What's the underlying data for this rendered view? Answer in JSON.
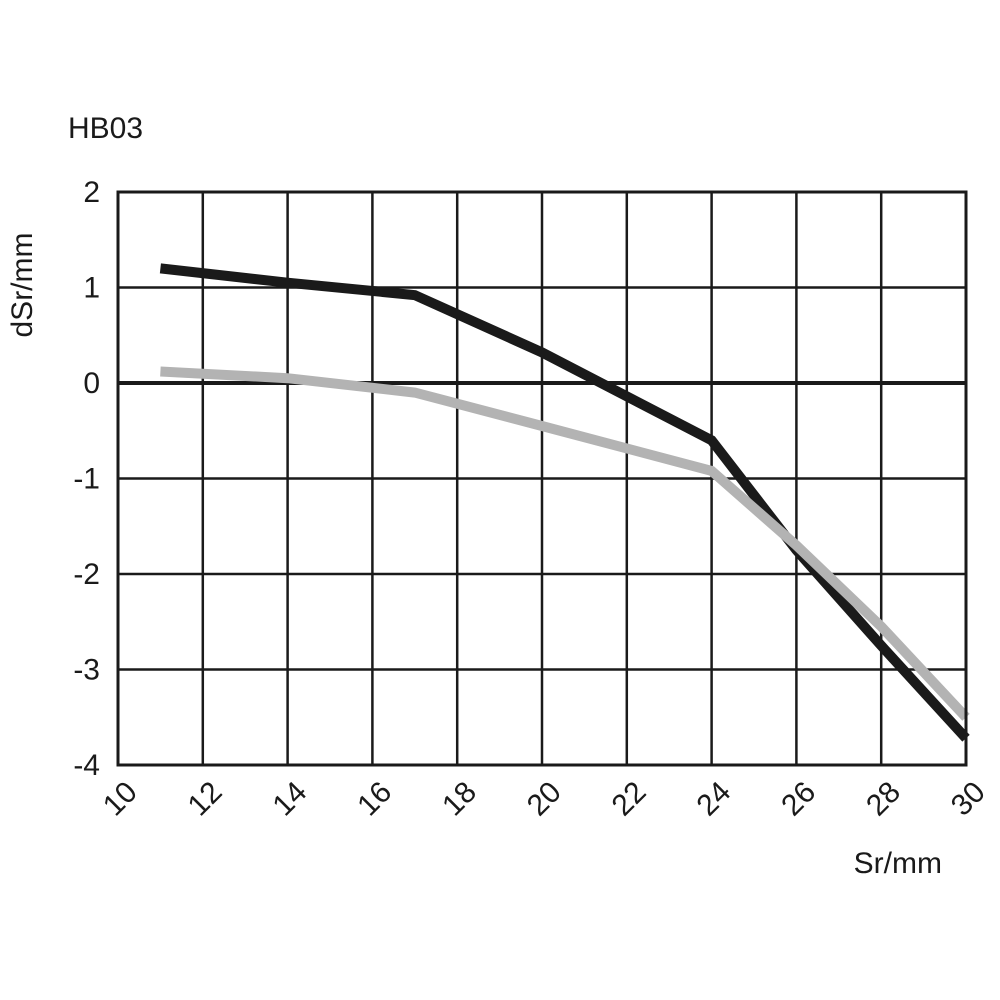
{
  "chart_data": {
    "type": "line",
    "title": "HB03",
    "xlabel": "Sr/mm",
    "ylabel": "dSr/mm",
    "xlim": [
      10,
      30
    ],
    "ylim": [
      -4,
      2
    ],
    "x_ticks": [
      10,
      12,
      14,
      16,
      18,
      20,
      22,
      24,
      26,
      28,
      30
    ],
    "y_ticks": [
      2,
      1,
      0,
      -1,
      -2,
      -3,
      -4
    ],
    "grid": true,
    "zero_line": true,
    "series": [
      {
        "color": "#1a1a1a",
        "points": [
          [
            11,
            1.2
          ],
          [
            14,
            1.05
          ],
          [
            17,
            0.92
          ],
          [
            20,
            0.32
          ],
          [
            24,
            -0.6
          ],
          [
            26,
            -1.75
          ],
          [
            28,
            -2.75
          ],
          [
            30,
            -3.72
          ]
        ]
      },
      {
        "color": "#b3b3b3",
        "points": [
          [
            11,
            0.12
          ],
          [
            14,
            0.05
          ],
          [
            17,
            -0.1
          ],
          [
            20,
            -0.45
          ],
          [
            24,
            -0.92
          ],
          [
            26,
            -1.7
          ],
          [
            28,
            -2.55
          ],
          [
            30,
            -3.5
          ]
        ]
      }
    ]
  }
}
